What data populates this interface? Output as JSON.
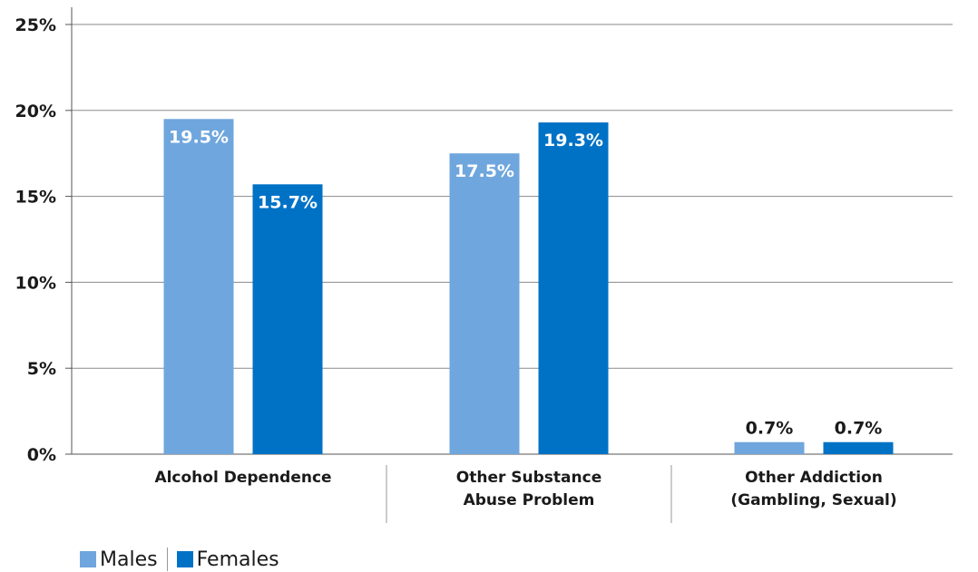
{
  "colors": {
    "males": "#6fa6dd",
    "females": "#0072c6",
    "grid": "#8a8a8a",
    "axis": "#555555"
  },
  "chart_data": {
    "type": "bar",
    "categories": [
      [
        "Alcohol Dependence"
      ],
      [
        "Other Substance",
        "Abuse Problem"
      ],
      [
        "Other Addiction",
        "(Gambling, Sexual)"
      ]
    ],
    "series": [
      {
        "name": "Males",
        "values": [
          19.5,
          17.5,
          0.7
        ],
        "labels": [
          "19.5%",
          "17.5%",
          "0.7%"
        ]
      },
      {
        "name": "Females",
        "values": [
          15.7,
          19.3,
          0.7
        ],
        "labels": [
          "15.7%",
          "19.3%",
          "0.7%"
        ]
      }
    ],
    "yticks": [
      "0%",
      "5%",
      "10%",
      "15%",
      "20%",
      "25%"
    ],
    "ytick_values": [
      0,
      5,
      10,
      15,
      20,
      25
    ],
    "ylim": [
      0,
      25
    ],
    "grid": true,
    "legend_position": "bottom-left"
  }
}
